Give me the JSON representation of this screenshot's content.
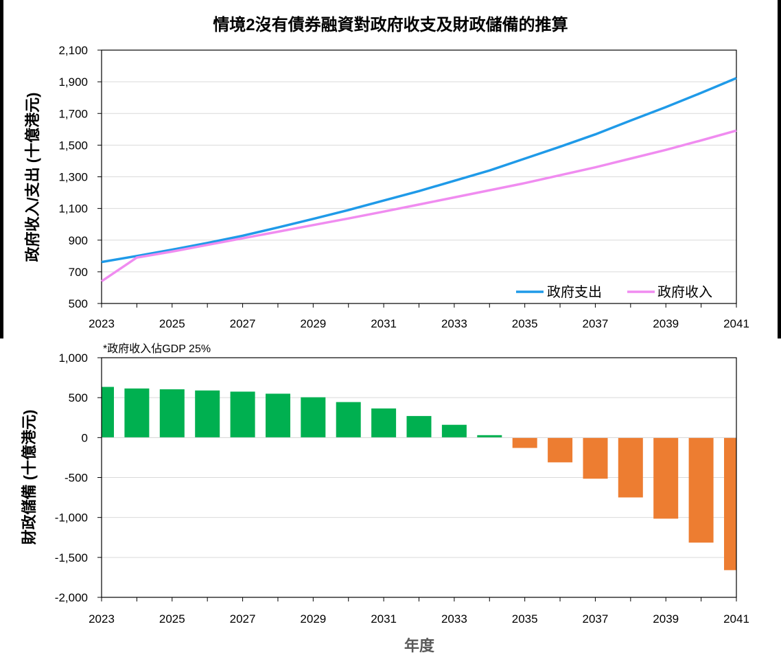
{
  "title": "情境2沒有債券融資對政府收支及財政儲備的推算",
  "chart_data": [
    {
      "type": "line",
      "x": [
        2023,
        2024,
        2025,
        2026,
        2027,
        2028,
        2029,
        2030,
        2031,
        2032,
        2033,
        2034,
        2035,
        2036,
        2037,
        2038,
        2039,
        2040,
        2041
      ],
      "series": [
        {
          "name": "政府支出",
          "color": "#1f9ae8",
          "values": [
            762,
            800,
            840,
            882,
            928,
            980,
            1034,
            1090,
            1150,
            1210,
            1275,
            1340,
            1415,
            1490,
            1568,
            1655,
            1740,
            1830,
            1923
          ]
        },
        {
          "name": "政府收入",
          "color": "#f08cf0",
          "values": [
            640,
            790,
            828,
            870,
            912,
            953,
            995,
            1037,
            1080,
            1125,
            1170,
            1215,
            1260,
            1310,
            1360,
            1415,
            1470,
            1530,
            1592
          ]
        }
      ],
      "ylabel": "政府收入/支出 (十億港元)",
      "xlabel": "",
      "ylim": [
        500,
        2100
      ],
      "xlim": [
        2023,
        2041
      ],
      "yticks": [
        "500",
        "700",
        "900",
        "1,100",
        "1,300",
        "1,500",
        "1,700",
        "1,900",
        "2,100"
      ],
      "xticks": [
        "2023",
        "2025",
        "2027",
        "2029",
        "2031",
        "2033",
        "2035",
        "2037",
        "2039",
        "2041"
      ],
      "grid": true,
      "legend_position": "bottom-right"
    },
    {
      "type": "bar",
      "categories": [
        "2023",
        "2024",
        "2025",
        "2026",
        "2027",
        "2028",
        "2029",
        "2030",
        "2031",
        "2032",
        "2033",
        "2034",
        "2035",
        "2036",
        "2037",
        "2038",
        "2039",
        "2040",
        "2041"
      ],
      "values": [
        635,
        615,
        605,
        590,
        575,
        550,
        505,
        445,
        365,
        270,
        160,
        30,
        -130,
        -310,
        -515,
        -750,
        -1015,
        -1315,
        -1660
      ],
      "positive_color": "#00b050",
      "negative_color": "#ed7d31",
      "ylabel": "財政儲備 (十億港元)",
      "xlabel": "年度",
      "ylim": [
        -2000,
        1000
      ],
      "yticks": [
        "-2,000",
        "-1,500",
        "-1,000",
        "-500",
        "0",
        "500",
        "1,000"
      ],
      "xticks": [
        "2023",
        "2025",
        "2027",
        "2029",
        "2031",
        "2033",
        "2035",
        "2037",
        "2039",
        "2041"
      ],
      "annotation": "*政府收入佔GDP 25%",
      "grid": true
    }
  ]
}
